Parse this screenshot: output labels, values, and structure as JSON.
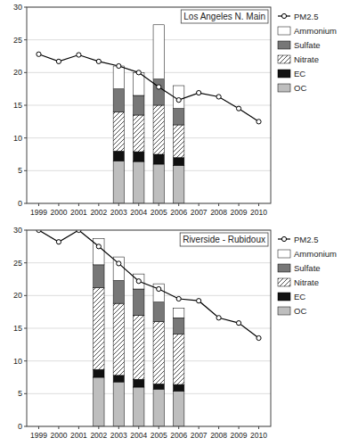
{
  "chart_data": [
    {
      "type": "bar",
      "title": "Los Angeles N. Main",
      "stacked": true,
      "grid": true,
      "legend": "right",
      "x": [
        1999,
        2000,
        2001,
        2002,
        2003,
        2004,
        2005,
        2006,
        2007,
        2008,
        2009,
        2010
      ],
      "xlim": [
        1998.4,
        2010.6
      ],
      "xticks": [
        1999,
        2000,
        2001,
        2002,
        2003,
        2004,
        2005,
        2006,
        2007,
        2008,
        2009,
        2010
      ],
      "ylim": [
        0,
        30
      ],
      "yticks": [
        0,
        5,
        10,
        15,
        20,
        25,
        30
      ],
      "series": [
        {
          "name": "OC",
          "type": "bar",
          "color": "#bebebe",
          "values": [
            null,
            null,
            null,
            null,
            6.5,
            6.4,
            6.0,
            5.8,
            null,
            null,
            null,
            null
          ]
        },
        {
          "name": "EC",
          "type": "bar",
          "color": "#111111",
          "values": [
            null,
            null,
            null,
            null,
            1.5,
            1.5,
            1.5,
            1.2,
            null,
            null,
            null,
            null
          ]
        },
        {
          "name": "Nitrate",
          "type": "bar",
          "color": "#ffffff",
          "values": [
            null,
            null,
            null,
            null,
            6.0,
            5.6,
            7.5,
            5.0,
            null,
            null,
            null,
            null
          ]
        },
        {
          "name": "Sulfate",
          "type": "bar",
          "color": "#777777",
          "values": [
            null,
            null,
            null,
            null,
            3.5,
            3.0,
            4.0,
            2.5,
            null,
            null,
            null,
            null
          ]
        },
        {
          "name": "Ammonium",
          "type": "bar",
          "color": "#ffffff",
          "values": [
            null,
            null,
            null,
            null,
            3.5,
            3.5,
            8.3,
            3.5,
            null,
            null,
            null,
            null
          ]
        },
        {
          "name": "PM2.5",
          "type": "line",
          "color": "#000000",
          "marker": "circle",
          "values": [
            22.8,
            21.7,
            22.7,
            21.7,
            21.0,
            20.0,
            17.8,
            15.8,
            16.9,
            16.3,
            14.5,
            12.5
          ]
        }
      ]
    },
    {
      "type": "bar",
      "title": "Riverside - Rubidoux",
      "stacked": true,
      "grid": true,
      "legend": "right",
      "x": [
        1999,
        2000,
        2001,
        2002,
        2003,
        2004,
        2005,
        2006,
        2007,
        2008,
        2009,
        2010
      ],
      "xlim": [
        1998.4,
        2010.6
      ],
      "xticks": [
        1999,
        2000,
        2001,
        2002,
        2003,
        2004,
        2005,
        2006,
        2007,
        2008,
        2009,
        2010
      ],
      "ylim": [
        0,
        30
      ],
      "yticks": [
        0,
        5,
        10,
        15,
        20,
        25,
        30
      ],
      "series": [
        {
          "name": "OC",
          "type": "bar",
          "color": "#bebebe",
          "values": [
            null,
            null,
            null,
            7.5,
            6.8,
            6.0,
            5.7,
            5.4,
            null,
            null,
            null,
            null
          ]
        },
        {
          "name": "EC",
          "type": "bar",
          "color": "#111111",
          "values": [
            null,
            null,
            null,
            1.2,
            1.0,
            1.2,
            0.8,
            1.0,
            null,
            null,
            null,
            null
          ]
        },
        {
          "name": "Nitrate",
          "type": "bar",
          "color": "#ffffff",
          "values": [
            null,
            null,
            null,
            12.5,
            11.0,
            9.8,
            9.5,
            7.7,
            null,
            null,
            null,
            null
          ]
        },
        {
          "name": "Sulfate",
          "type": "bar",
          "color": "#777777",
          "values": [
            null,
            null,
            null,
            3.5,
            3.5,
            4.0,
            3.0,
            2.5,
            null,
            null,
            null,
            null
          ]
        },
        {
          "name": "Ammonium",
          "type": "bar",
          "color": "#ffffff",
          "values": [
            null,
            null,
            null,
            4.0,
            3.6,
            2.3,
            2.8,
            1.5,
            null,
            null,
            null,
            null
          ]
        },
        {
          "name": "PM2.5",
          "type": "line",
          "color": "#000000",
          "marker": "circle",
          "values": [
            30.0,
            28.2,
            30.0,
            27.5,
            24.9,
            22.2,
            21.0,
            19.5,
            19.2,
            16.6,
            15.8,
            13.5
          ]
        }
      ]
    }
  ]
}
